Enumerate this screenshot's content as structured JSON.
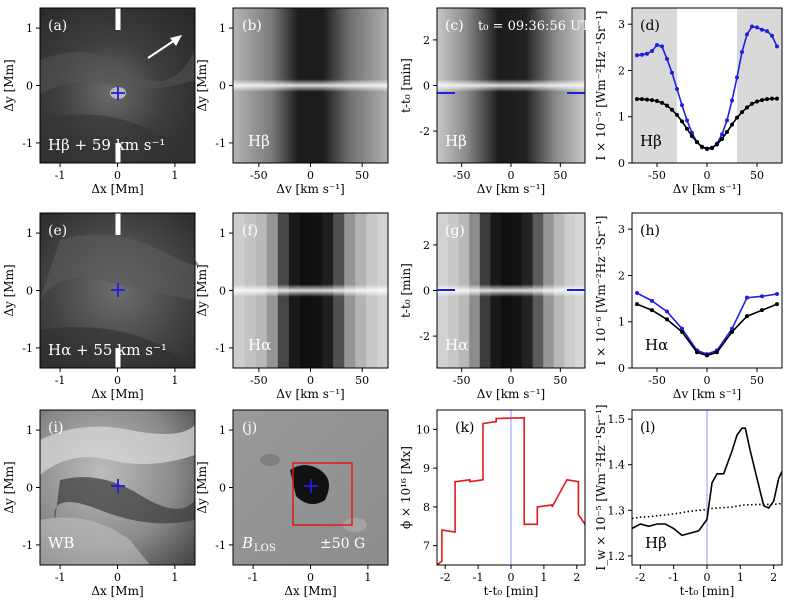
{
  "figure": {
    "panels": {
      "a": {
        "label": "(a)",
        "caption": "Hβ + 59 km s⁻¹"
      },
      "b": {
        "label": "(b)",
        "caption": "Hβ"
      },
      "c": {
        "label": "(c)",
        "caption": "Hβ",
        "time": "t₀ = 09:36:56 UT"
      },
      "d": {
        "label": "(d)",
        "caption": "Hβ"
      },
      "e": {
        "label": "(e)",
        "caption": "Hα + 55 km s⁻¹"
      },
      "f": {
        "label": "(f)",
        "caption": "Hα"
      },
      "g": {
        "label": "(g)",
        "caption": "Hα"
      },
      "h": {
        "label": "(h)",
        "caption": "Hα"
      },
      "i": {
        "label": "(i)",
        "caption": "WB"
      },
      "j": {
        "label": "(j)",
        "caption": "B",
        "caption_sub": "LOS",
        "range": "±50 G"
      },
      "k": {
        "label": "(k)"
      },
      "l": {
        "label": "(l)",
        "caption": "Hβ"
      }
    },
    "axes": {
      "dx": "Δx [Mm]",
      "dy": "Δy [Mm]",
      "dv": "Δv [km s⁻¹]",
      "tt0": "t-t₀ [min]",
      "tt0_min": "t-t₀ [min]",
      "d_y": "I × 10⁻⁵ [Wm⁻²Hz⁻¹Sr⁻¹]",
      "h_y": "I × 10⁻⁶ [Wm⁻²Hz⁻¹Sr⁻¹]",
      "k_y": "ϕ × 10¹⁶ [Mx]",
      "l_y": "I_w × 10⁻⁵ [Wm⁻²Hz⁻¹Sr⁻¹]"
    },
    "ticks": {
      "dx": [
        "-1",
        "0",
        "1"
      ],
      "dy": [
        "1",
        "0",
        "-1"
      ],
      "dv": [
        "-50",
        "0",
        "50"
      ],
      "tt0_y": [
        "2",
        "0",
        "-2"
      ],
      "d_y": [
        "3",
        "2",
        "1",
        "0"
      ],
      "h_y": [
        "3",
        "2",
        "1",
        "0"
      ],
      "k_y": [
        "10",
        "9",
        "8",
        "7"
      ],
      "l_y": [
        "1.5",
        "1.4",
        "1.3",
        "1.2"
      ],
      "t_x": [
        "-2",
        "-1",
        "0",
        "1",
        "2"
      ]
    },
    "colors": {
      "blue": "#1f1fe0",
      "red": "#e01a1a",
      "black": "#000000",
      "shade": "#d9d9d9",
      "vline": "#9fa8ff"
    }
  },
  "chart_data": [
    {
      "id": "d",
      "type": "line",
      "title": "Hβ",
      "xlabel": "Δv [km s⁻¹]",
      "ylabel": "I × 10⁻⁵ [Wm⁻²Hz⁻¹Sr⁻¹]",
      "xlim": [
        -75,
        75
      ],
      "ylim": [
        0,
        3.35
      ],
      "shaded_x": [
        [
          -75,
          -30
        ],
        [
          30,
          75
        ]
      ],
      "x": [
        -70,
        -65,
        -60,
        -55,
        -50,
        -45,
        -40,
        -35,
        -30,
        -25,
        -20,
        -15,
        -10,
        -5,
        0,
        5,
        10,
        15,
        20,
        25,
        30,
        35,
        40,
        45,
        50,
        55,
        60,
        65,
        70
      ],
      "series": [
        {
          "name": "blue",
          "color": "#1f1fe0",
          "values": [
            2.33,
            2.34,
            2.36,
            2.42,
            2.55,
            2.52,
            2.25,
            1.95,
            1.6,
            1.25,
            0.92,
            0.65,
            0.45,
            0.34,
            0.3,
            0.32,
            0.42,
            0.62,
            0.92,
            1.35,
            1.85,
            2.4,
            2.78,
            2.95,
            2.93,
            2.88,
            2.85,
            2.75,
            2.52
          ]
        },
        {
          "name": "black",
          "color": "#000000",
          "values": [
            1.38,
            1.38,
            1.37,
            1.36,
            1.34,
            1.3,
            1.24,
            1.15,
            1.04,
            0.9,
            0.74,
            0.58,
            0.45,
            0.35,
            0.31,
            0.33,
            0.4,
            0.52,
            0.67,
            0.83,
            0.98,
            1.1,
            1.2,
            1.28,
            1.33,
            1.36,
            1.38,
            1.39,
            1.39
          ]
        }
      ]
    },
    {
      "id": "h",
      "type": "line",
      "title": "Hα",
      "xlabel": "Δv [km s⁻¹]",
      "ylabel": "I × 10⁻⁶ [Wm⁻²Hz⁻¹Sr⁻¹]",
      "xlim": [
        -75,
        75
      ],
      "ylim": [
        0,
        3.35
      ],
      "x": [
        -70,
        -55,
        -40,
        -25,
        -10,
        0,
        10,
        25,
        40,
        55,
        70
      ],
      "series": [
        {
          "name": "blue",
          "color": "#1f1fe0",
          "values": [
            1.62,
            1.45,
            1.22,
            0.85,
            0.38,
            0.3,
            0.38,
            0.85,
            1.52,
            1.55,
            1.6
          ]
        },
        {
          "name": "black",
          "color": "#000000",
          "values": [
            1.38,
            1.25,
            1.05,
            0.78,
            0.34,
            0.27,
            0.34,
            0.78,
            1.12,
            1.25,
            1.38
          ]
        }
      ]
    },
    {
      "id": "k",
      "type": "line",
      "xlabel": "t-t₀ [min]",
      "ylabel": "ϕ × 10¹⁶ [Mx]",
      "xlim": [
        -2.25,
        2.25
      ],
      "ylim": [
        6.5,
        10.5
      ],
      "x": [
        -2.25,
        -2.1,
        -2.1,
        -1.7,
        -1.7,
        -1.25,
        -1.25,
        -0.85,
        -0.85,
        -0.45,
        -0.45,
        0.4,
        0.4,
        0.8,
        0.8,
        1.25,
        1.25,
        1.7,
        1.7,
        2.05,
        2.05,
        2.25
      ],
      "series": [
        {
          "name": "flux",
          "color": "#e01a1a",
          "values": [
            6.5,
            6.6,
            7.4,
            7.35,
            8.65,
            8.7,
            8.65,
            8.7,
            10.15,
            10.2,
            10.28,
            10.3,
            7.55,
            7.55,
            8.0,
            8.05,
            8.0,
            8.7,
            8.7,
            8.65,
            7.8,
            7.55
          ]
        }
      ]
    },
    {
      "id": "l",
      "type": "line",
      "title": "Hβ",
      "xlabel": "t-t₀ [min]",
      "ylabel": "I_w × 10⁻⁵ [Wm⁻²Hz⁻¹Sr⁻¹]",
      "xlim": [
        -2.25,
        2.25
      ],
      "ylim": [
        1.18,
        1.52
      ],
      "x": [
        -2.25,
        -2.0,
        -1.75,
        -1.5,
        -1.25,
        -1.0,
        -0.75,
        -0.5,
        -0.25,
        0,
        0.15,
        0.3,
        0.5,
        0.75,
        0.9,
        1.05,
        1.15,
        1.3,
        1.5,
        1.7,
        1.85,
        2.0,
        2.15,
        2.25
      ],
      "series": [
        {
          "name": "line-core",
          "style": "solid",
          "color": "#000000",
          "values": [
            1.26,
            1.27,
            1.265,
            1.27,
            1.27,
            1.26,
            1.245,
            1.25,
            1.255,
            1.28,
            1.36,
            1.38,
            1.38,
            1.43,
            1.465,
            1.48,
            1.48,
            1.43,
            1.37,
            1.31,
            1.305,
            1.32,
            1.37,
            1.385
          ]
        },
        {
          "name": "reference",
          "style": "dotted",
          "color": "#000000",
          "values": [
            1.282,
            1.285,
            1.286,
            1.288,
            1.29,
            1.292,
            1.295,
            1.298,
            1.3,
            1.302,
            1.304,
            1.305,
            1.306,
            1.307,
            1.309,
            1.311,
            1.312,
            1.312,
            1.313,
            1.313,
            1.313,
            1.313,
            1.314,
            1.315
          ]
        }
      ]
    }
  ]
}
